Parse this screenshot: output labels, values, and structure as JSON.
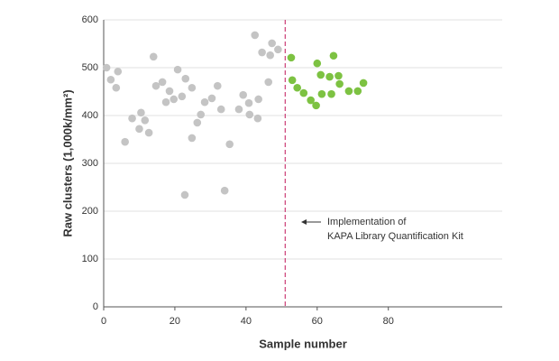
{
  "chart_data": {
    "type": "scatter",
    "xlabel": "Sample number",
    "ylabel": "Raw clusters (1,000k/mm²)",
    "annotation": [
      "Implementation of",
      "KAPA Library Quantification Kit"
    ],
    "divider_x": 51,
    "xlim": [
      0,
      112
    ],
    "ylim": [
      0,
      600
    ],
    "xticks": [
      0,
      20,
      40,
      60,
      80
    ],
    "yticks": [
      0,
      100,
      200,
      300,
      400,
      500,
      600
    ],
    "grid": true,
    "series": [
      {
        "color": "#c4c4c4",
        "x": [
          0.8,
          2,
          3.5,
          4,
          6,
          8,
          10,
          10.5,
          11.6,
          12.7,
          14,
          14.7,
          16.5,
          17.5,
          18.5,
          19.7,
          20.8,
          22,
          22.8,
          23,
          24.8,
          24.8,
          26.3,
          27.3,
          28.4,
          30.4,
          32,
          33,
          34,
          35.4,
          38,
          39.2,
          40.8,
          41,
          42.5,
          43.3,
          43.5,
          44.5,
          46.3,
          46.8,
          47.3,
          49
        ],
        "y": [
          500,
          475,
          458,
          492,
          345,
          394,
          372,
          406,
          390,
          364,
          523,
          462,
          470,
          428,
          451,
          434,
          496,
          440,
          234,
          477,
          458,
          353,
          385,
          402,
          428,
          436,
          462,
          413,
          243,
          340,
          413,
          443,
          426,
          402,
          568,
          394,
          434,
          532,
          470,
          526,
          551,
          538
        ]
      },
      {
        "color": "#7dc242",
        "x": [
          52.7,
          53,
          54.4,
          56.2,
          58.2,
          59.7,
          60,
          61,
          61.3,
          63.5,
          64,
          64.6,
          66,
          66.3,
          68.9,
          71.4,
          73
        ],
        "y": [
          521,
          474,
          458,
          447,
          432,
          421,
          509,
          485,
          445,
          481,
          445,
          525,
          483,
          466,
          451,
          451,
          468
        ]
      }
    ]
  }
}
